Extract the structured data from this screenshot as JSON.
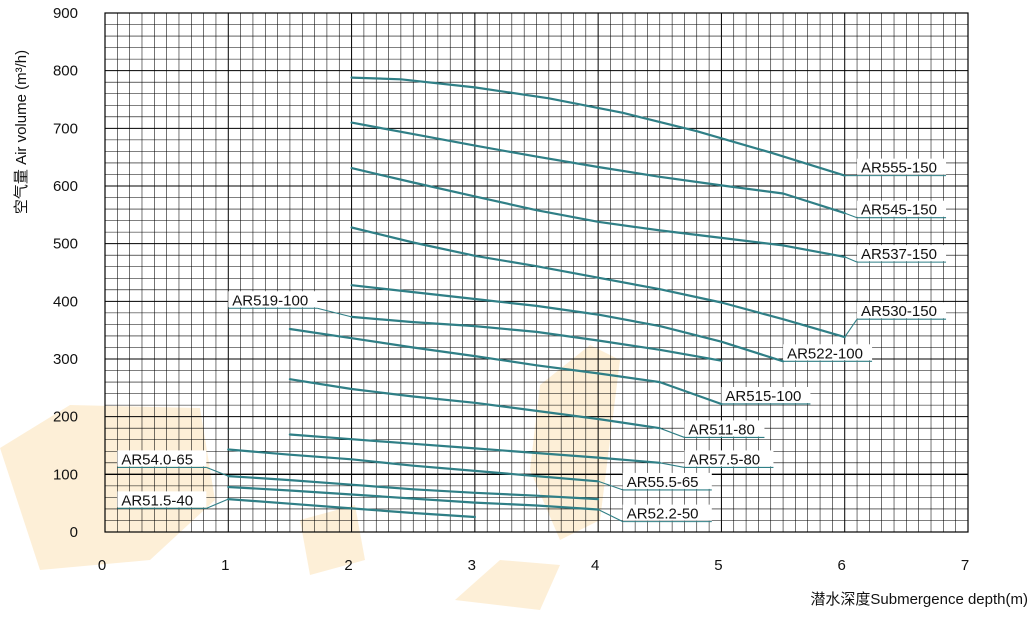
{
  "chart_data": {
    "type": "line",
    "xlabel": "潜水深度Submergence depth(m)",
    "ylabel": "空气量 Air volume (m³/h)",
    "xlim": [
      0,
      7
    ],
    "ylim": [
      0,
      900
    ],
    "xticks": [
      "0",
      "1",
      "2",
      "3",
      "4",
      "5",
      "6",
      "7"
    ],
    "yticks": [
      "0",
      "100",
      "200",
      "300",
      "400",
      "500",
      "600",
      "700",
      "800",
      "900"
    ],
    "grid": true,
    "series": [
      {
        "name": "AR555-150",
        "x": [
          2.0,
          2.4,
          3.0,
          3.6,
          4.2,
          4.8,
          5.4,
          6.0
        ],
        "y": [
          788,
          785,
          771,
          752,
          727,
          695,
          658,
          618
        ]
      },
      {
        "name": "AR545-150",
        "x": [
          2.0,
          2.5,
          3.0,
          3.5,
          4.0,
          4.5,
          5.0,
          5.5,
          6.0
        ],
        "y": [
          710,
          690,
          670,
          651,
          633,
          616,
          601,
          587,
          553
        ]
      },
      {
        "name": "AR537-150",
        "x": [
          2.0,
          2.5,
          3.0,
          3.5,
          4.0,
          4.5,
          5.0,
          5.5,
          6.0
        ],
        "y": [
          631,
          606,
          582,
          558,
          538,
          523,
          510,
          497,
          477
        ]
      },
      {
        "name": "AR530-150",
        "x": [
          2.0,
          2.5,
          3.0,
          3.5,
          4.0,
          4.5,
          5.0,
          5.5,
          6.0
        ],
        "y": [
          528,
          502,
          479,
          461,
          441,
          421,
          398,
          369,
          338
        ]
      },
      {
        "name": "AR522-100",
        "x": [
          2.0,
          2.5,
          3.0,
          3.5,
          4.0,
          4.5,
          5.0,
          5.5
        ],
        "y": [
          428,
          416,
          404,
          392,
          377,
          357,
          330,
          296
        ]
      },
      {
        "name": "AR519-100",
        "x": [
          2.0,
          2.5,
          3.0,
          3.5,
          4.0,
          4.5,
          5.0
        ],
        "y": [
          373,
          364,
          357,
          347,
          332,
          316,
          297
        ]
      },
      {
        "name": "AR515-100",
        "x": [
          1.5,
          2.0,
          2.5,
          3.0,
          3.5,
          4.0,
          4.5,
          5.0
        ],
        "y": [
          352,
          336,
          320,
          305,
          289,
          275,
          260,
          222
        ]
      },
      {
        "name": "AR511-80",
        "x": [
          1.5,
          2.0,
          2.5,
          3.0,
          3.5,
          4.0,
          4.5
        ],
        "y": [
          265,
          248,
          235,
          224,
          210,
          196,
          180
        ]
      },
      {
        "name": "AR57.5-80",
        "x": [
          1.5,
          2.0,
          2.5,
          3.0,
          3.5,
          4.0,
          4.5
        ],
        "y": [
          169,
          161,
          153,
          145,
          137,
          129,
          120
        ]
      },
      {
        "name": "AR55.5-65",
        "x": [
          1.0,
          1.5,
          2.0,
          2.5,
          3.0,
          3.5,
          4.0
        ],
        "y": [
          143,
          134,
          126,
          115,
          106,
          97,
          88
        ]
      },
      {
        "name": "AR54.0-65",
        "x": [
          1.0,
          1.5,
          2.0,
          2.5,
          3.0,
          3.5,
          4.0
        ],
        "y": [
          97,
          90,
          82,
          74,
          68,
          63,
          57
        ]
      },
      {
        "name": "AR52.2-50",
        "x": [
          1.0,
          1.5,
          2.0,
          2.5,
          3.0,
          3.5,
          4.0
        ],
        "y": [
          78,
          72,
          65,
          58,
          51,
          46,
          39
        ]
      },
      {
        "name": "AR51.5-40",
        "x": [
          1.0,
          1.5,
          2.0,
          2.5,
          3.0
        ],
        "y": [
          57,
          49,
          41,
          33,
          26
        ]
      }
    ],
    "label_anchor": {
      "AR555-150": [
        6.0,
        618
      ],
      "AR545-150": [
        6.0,
        553
      ],
      "AR537-150": [
        6.0,
        477
      ],
      "AR530-150": [
        6.0,
        338
      ],
      "AR522-100": [
        5.5,
        296
      ],
      "AR519-100": [
        2.0,
        373
      ],
      "AR515-100": [
        5.0,
        222
      ],
      "AR511-80": [
        4.5,
        180
      ],
      "AR57.5-80": [
        4.5,
        120
      ],
      "AR55.5-65": [
        4.0,
        88
      ],
      "AR54.0-65": [
        1.0,
        97
      ],
      "AR52.2-50": [
        4.0,
        39
      ],
      "AR51.5-40": [
        1.0,
        57
      ]
    },
    "label_value": {
      "AR555-150": [
        6.1,
        618
      ],
      "AR545-150": [
        6.1,
        545
      ],
      "AR537-150": [
        6.1,
        468
      ],
      "AR530-150": [
        6.1,
        369
      ],
      "AR522-100": [
        5.5,
        296
      ],
      "AR519-100": [
        1.0,
        388
      ],
      "AR515-100": [
        5.0,
        222
      ],
      "AR511-80": [
        4.7,
        164
      ],
      "AR57.5-80": [
        4.7,
        112
      ],
      "AR55.5-65": [
        4.2,
        73
      ],
      "AR54.0-65": [
        0.1,
        112
      ],
      "AR52.2-50": [
        4.2,
        18
      ],
      "AR51.5-40": [
        0.1,
        41
      ]
    },
    "label_side": {
      "AR519-100": "left",
      "AR54.0-65": "left",
      "AR51.5-40": "left"
    },
    "colors": {
      "curve": "#2f7f86",
      "grid": "#000000",
      "leader": "#2f7f86",
      "label_text": "#111111",
      "axis_text": "#111111",
      "watermark": "#f5a623"
    }
  }
}
